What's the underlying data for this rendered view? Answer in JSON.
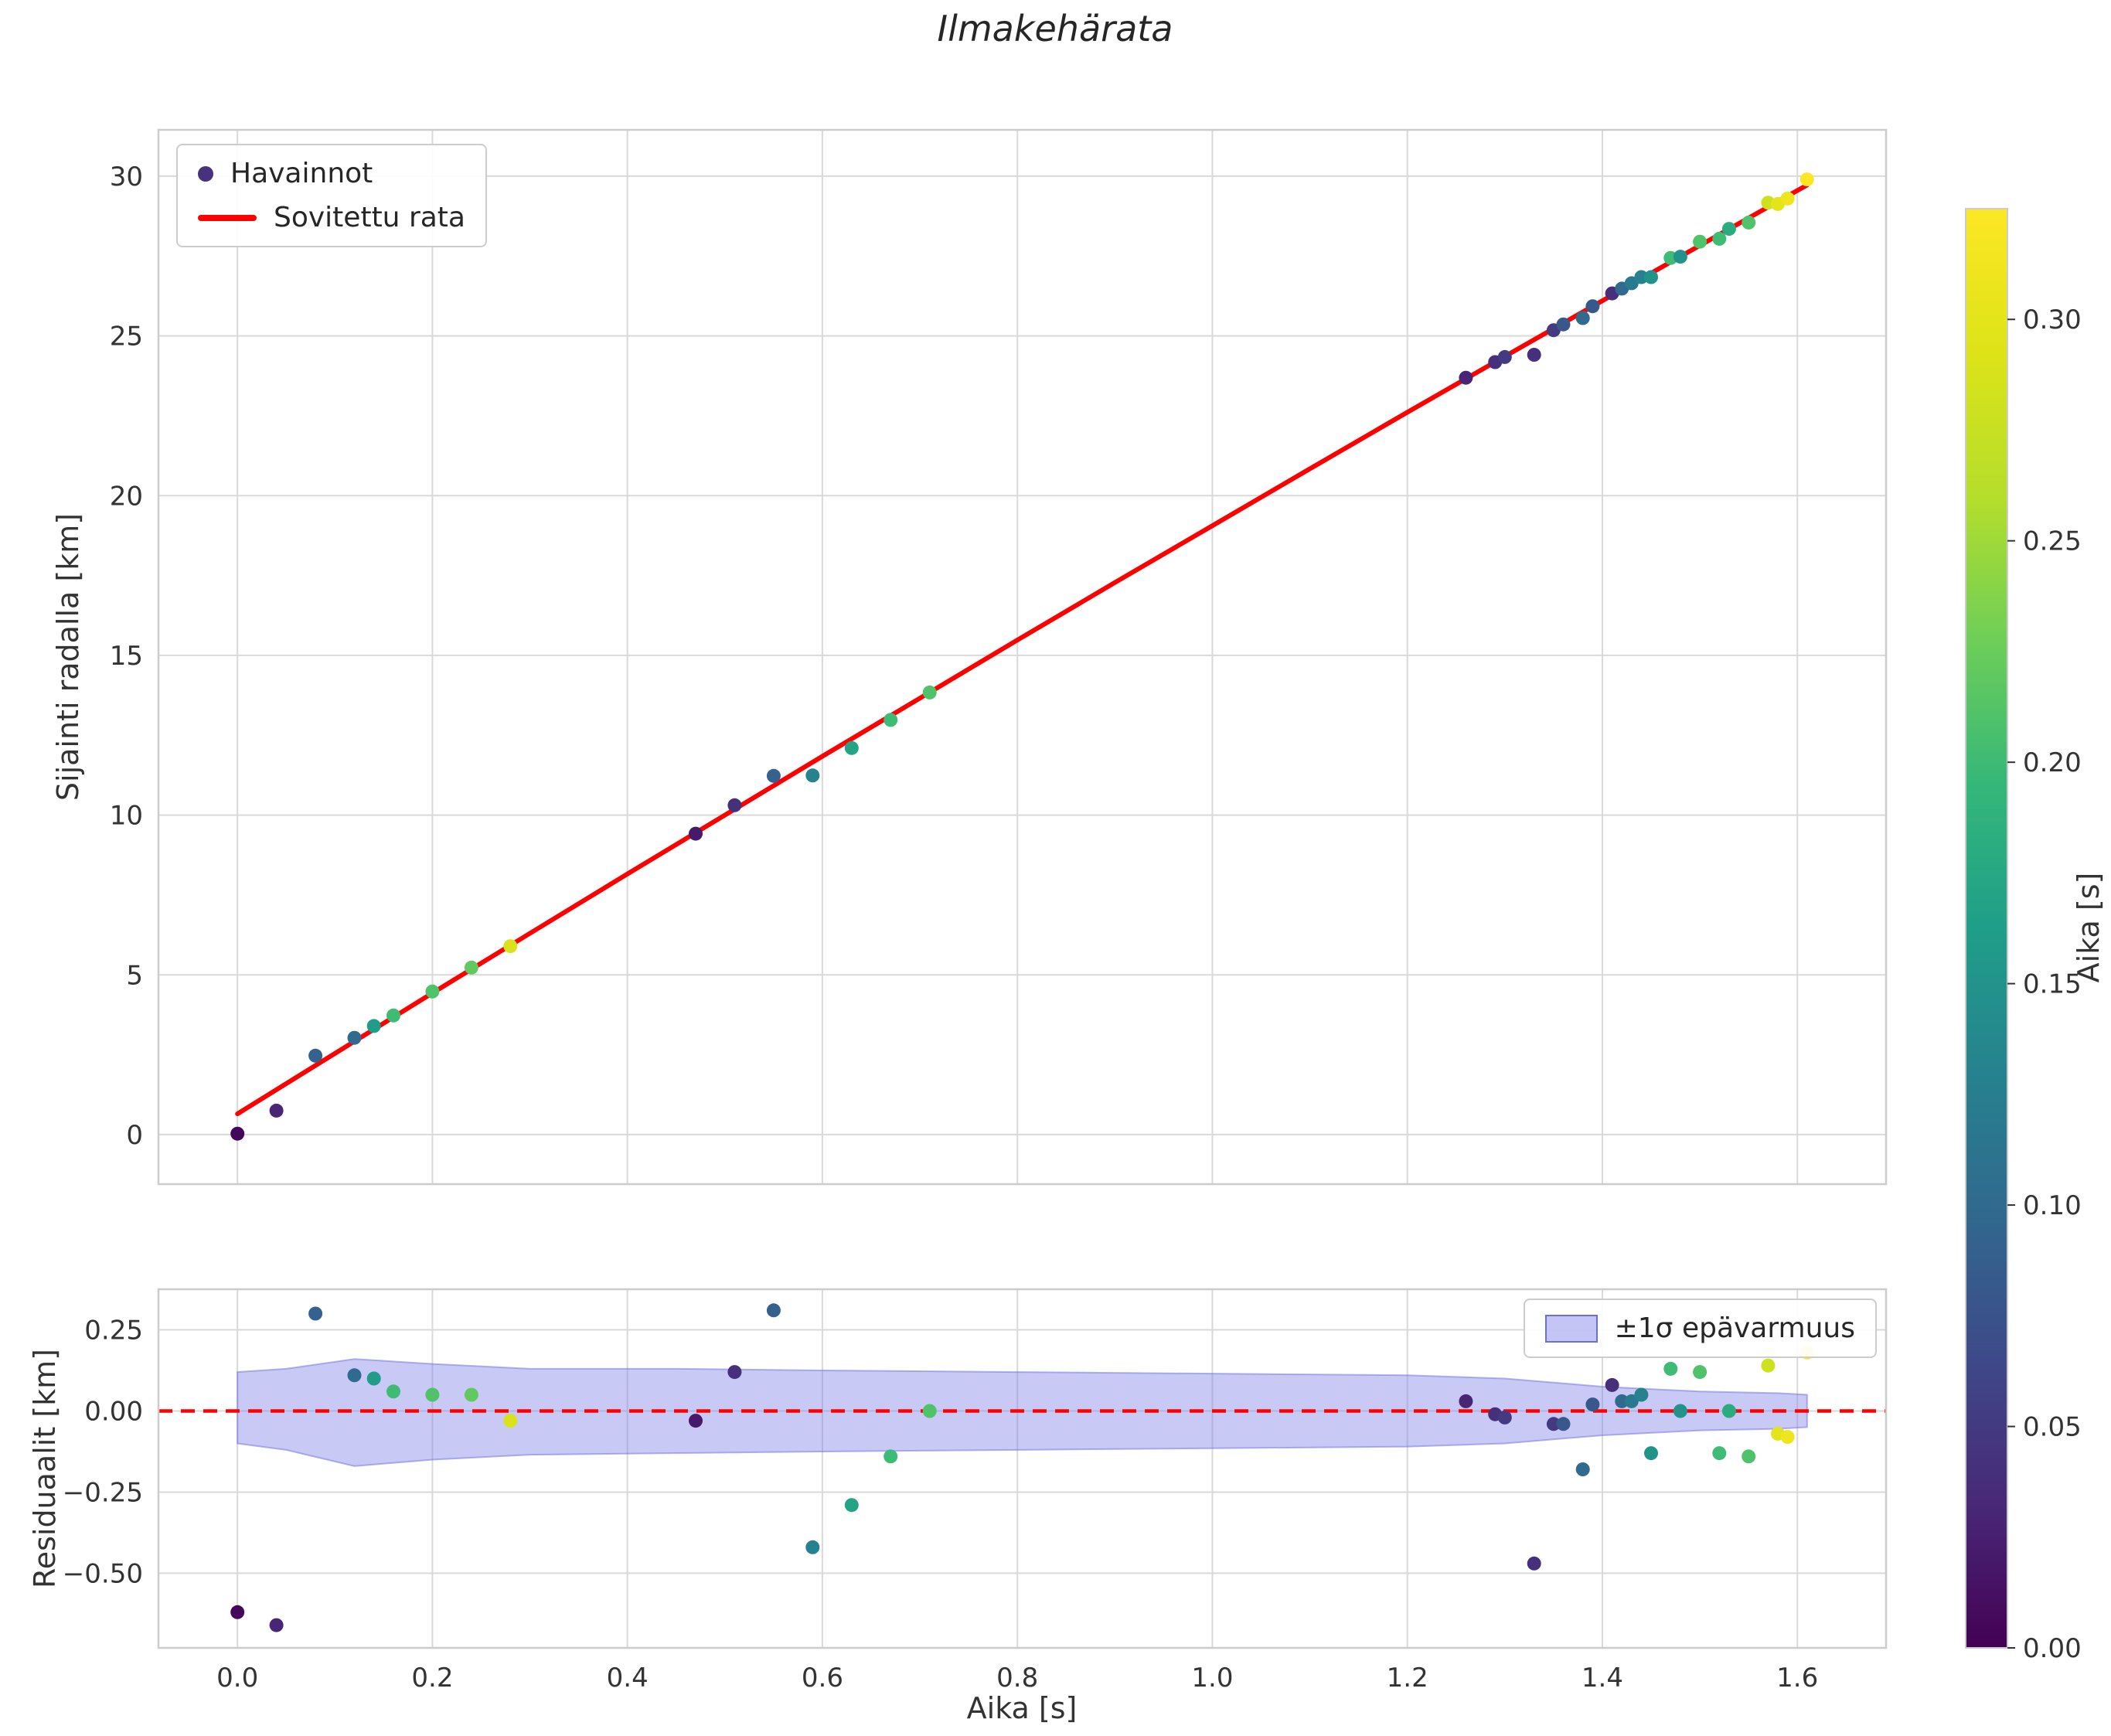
{
  "title": "Ilmakehärata",
  "colors": {
    "background": "#ffffff",
    "fit_line": "#ff0000",
    "grid": "#d9d9d9",
    "frame": "#cccccc",
    "band_fill": "#7f7fe8",
    "band_edge": "#6b6fdd",
    "tick_text": "#333333",
    "legend_marker": "#46327e"
  },
  "viridis_stops": [
    "#440154",
    "#482878",
    "#3e4989",
    "#31688e",
    "#26828e",
    "#1f9e89",
    "#35b779",
    "#6ece58",
    "#b5de2b",
    "#dde318",
    "#fde725"
  ],
  "observations": {
    "t": [
      0.0,
      0.04,
      0.08,
      0.12,
      0.14,
      0.16,
      0.2,
      0.24,
      0.28,
      0.47,
      0.51,
      0.55,
      0.59,
      0.63,
      0.67,
      0.71,
      1.26,
      1.29,
      1.3,
      1.33,
      1.35,
      1.36,
      1.38,
      1.39,
      1.41,
      1.42,
      1.43,
      1.44,
      1.45,
      1.47,
      1.48,
      1.5,
      1.52,
      1.53,
      1.55,
      1.57,
      1.58,
      1.59,
      1.61
    ],
    "pos": [
      0.03,
      0.75,
      2.47,
      3.03,
      3.4,
      3.73,
      4.48,
      5.23,
      5.9,
      9.42,
      10.31,
      11.23,
      11.24,
      12.1,
      12.98,
      13.84,
      23.69,
      24.18,
      24.34,
      24.41,
      25.18,
      25.36,
      25.56,
      25.93,
      26.33,
      26.48,
      26.65,
      26.84,
      26.84,
      27.44,
      27.48,
      27.95,
      28.04,
      28.35,
      28.55,
      29.17,
      29.13,
      29.3,
      29.9
    ],
    "resid": [
      -0.62,
      -0.66,
      0.3,
      0.11,
      0.1,
      0.06,
      0.05,
      0.05,
      -0.03,
      -0.03,
      0.12,
      0.31,
      -0.42,
      -0.29,
      -0.14,
      0.0,
      0.03,
      -0.01,
      -0.02,
      -0.47,
      -0.04,
      -0.04,
      -0.18,
      0.02,
      0.08,
      0.03,
      0.03,
      0.05,
      -0.13,
      0.13,
      0.0,
      0.12,
      -0.13,
      0.0,
      -0.14,
      0.14,
      -0.07,
      -0.08,
      0.18
    ],
    "c": [
      0.005,
      0.03,
      0.09,
      0.1,
      0.16,
      0.2,
      0.21,
      0.22,
      0.29,
      0.02,
      0.04,
      0.09,
      0.13,
      0.17,
      0.2,
      0.21,
      0.03,
      0.04,
      0.05,
      0.04,
      0.05,
      0.08,
      0.1,
      0.08,
      0.04,
      0.1,
      0.12,
      0.13,
      0.15,
      0.2,
      0.15,
      0.21,
      0.2,
      0.18,
      0.21,
      0.28,
      0.3,
      0.31,
      0.325
    ]
  },
  "chart_data": [
    {
      "id": "trajectory",
      "type": "scatter",
      "title": "Ilmakehärata",
      "xlabel": "",
      "ylabel": "Sijainti radalla [km]",
      "xlim": [
        -0.081,
        1.691
      ],
      "ylim": [
        -1.55,
        31.45
      ],
      "grid": true,
      "xticks": [
        0,
        0.2,
        0.4,
        0.6,
        0.8,
        1.0,
        1.2,
        1.4,
        1.6
      ],
      "yticks": [
        0,
        5,
        10,
        15,
        20,
        25,
        30
      ],
      "ytick_labels": [
        "0",
        "5",
        "10",
        "15",
        "20",
        "25",
        "30"
      ],
      "legend": {
        "position": "upper left",
        "entries": [
          {
            "label": "Havainnot",
            "type": "marker"
          },
          {
            "label": "Sovitettu rata",
            "type": "line"
          }
        ]
      },
      "fit_line": {
        "name": "Sovitettu rata",
        "color": "#ff0000",
        "x": [
          0.0,
          0.1,
          0.2,
          0.3,
          0.4,
          0.5,
          0.6,
          0.7,
          0.8,
          0.9,
          1.0,
          1.1,
          1.2,
          1.3,
          1.4,
          1.5,
          1.6,
          1.61
        ],
        "y": [
          0.65,
          2.54,
          4.43,
          6.3,
          8.16,
          10.0,
          11.84,
          13.66,
          15.48,
          17.28,
          19.06,
          20.84,
          22.61,
          24.36,
          26.1,
          27.83,
          29.55,
          29.72
        ]
      },
      "scatter": {
        "name": "Havainnot",
        "colormap": "viridis",
        "x": [
          0.0,
          0.04,
          0.08,
          0.12,
          0.14,
          0.16,
          0.2,
          0.24,
          0.28,
          0.47,
          0.51,
          0.55,
          0.59,
          0.63,
          0.67,
          0.71,
          1.26,
          1.29,
          1.3,
          1.33,
          1.35,
          1.36,
          1.38,
          1.39,
          1.41,
          1.42,
          1.43,
          1.44,
          1.45,
          1.47,
          1.48,
          1.5,
          1.52,
          1.53,
          1.55,
          1.57,
          1.58,
          1.59,
          1.61
        ],
        "y": [
          0.03,
          0.75,
          2.47,
          3.03,
          3.4,
          3.73,
          4.48,
          5.23,
          5.9,
          9.42,
          10.31,
          11.23,
          11.24,
          12.1,
          12.98,
          13.84,
          23.69,
          24.18,
          24.34,
          24.41,
          25.18,
          25.36,
          25.56,
          25.93,
          26.33,
          26.48,
          26.65,
          26.84,
          26.84,
          27.44,
          27.48,
          27.95,
          28.04,
          28.35,
          28.55,
          29.17,
          29.13,
          29.3,
          29.9
        ],
        "color_values": [
          0.005,
          0.03,
          0.09,
          0.1,
          0.16,
          0.2,
          0.21,
          0.22,
          0.29,
          0.02,
          0.04,
          0.09,
          0.13,
          0.17,
          0.2,
          0.21,
          0.03,
          0.04,
          0.05,
          0.04,
          0.05,
          0.08,
          0.1,
          0.08,
          0.04,
          0.1,
          0.12,
          0.13,
          0.15,
          0.2,
          0.15,
          0.21,
          0.2,
          0.18,
          0.21,
          0.28,
          0.3,
          0.31,
          0.325
        ]
      }
    },
    {
      "id": "residuals",
      "type": "scatter",
      "xlabel": "Aika [s]",
      "ylabel": "Residuaalit [km]",
      "xlim": [
        -0.081,
        1.691
      ],
      "ylim": [
        -0.73,
        0.375
      ],
      "grid": true,
      "xticks": [
        0,
        0.2,
        0.4,
        0.6,
        0.8,
        1.0,
        1.2,
        1.4,
        1.6
      ],
      "xtick_labels": [
        "0.0",
        "0.2",
        "0.4",
        "0.6",
        "0.8",
        "1.0",
        "1.2",
        "1.4",
        "1.6"
      ],
      "yticks": [
        0.25,
        0.0,
        -0.25,
        -0.5
      ],
      "ytick_labels": [
        "0.25",
        "0.00",
        "−0.25",
        "−0.50"
      ],
      "zero_line": {
        "y": 0,
        "color": "#ff0000",
        "style": "dashed"
      },
      "band": {
        "label": "±1σ epävarmuus",
        "x": [
          0.0,
          0.05,
          0.12,
          0.2,
          0.3,
          0.45,
          0.6,
          0.8,
          1.0,
          1.2,
          1.3,
          1.4,
          1.5,
          1.58,
          1.61
        ],
        "upper": [
          0.12,
          0.13,
          0.16,
          0.145,
          0.13,
          0.13,
          0.125,
          0.12,
          0.115,
          0.11,
          0.1,
          0.075,
          0.06,
          0.055,
          0.05
        ],
        "lower": [
          -0.1,
          -0.12,
          -0.17,
          -0.15,
          -0.135,
          -0.13,
          -0.125,
          -0.12,
          -0.115,
          -0.11,
          -0.1,
          -0.075,
          -0.06,
          -0.055,
          -0.05
        ]
      },
      "scatter": {
        "colormap": "viridis",
        "x": [
          0.0,
          0.04,
          0.08,
          0.12,
          0.14,
          0.16,
          0.2,
          0.24,
          0.28,
          0.47,
          0.51,
          0.55,
          0.59,
          0.63,
          0.67,
          0.71,
          1.26,
          1.29,
          1.3,
          1.33,
          1.35,
          1.36,
          1.38,
          1.39,
          1.41,
          1.42,
          1.43,
          1.44,
          1.45,
          1.47,
          1.48,
          1.5,
          1.52,
          1.53,
          1.55,
          1.57,
          1.58,
          1.59,
          1.61
        ],
        "y": [
          -0.62,
          -0.66,
          0.3,
          0.11,
          0.1,
          0.06,
          0.05,
          0.05,
          -0.03,
          -0.03,
          0.12,
          0.31,
          -0.42,
          -0.29,
          -0.14,
          0.0,
          0.03,
          -0.01,
          -0.02,
          -0.47,
          -0.04,
          -0.04,
          -0.18,
          0.02,
          0.08,
          0.03,
          0.03,
          0.05,
          -0.13,
          0.13,
          0.0,
          0.12,
          -0.13,
          0.0,
          -0.14,
          0.14,
          -0.07,
          -0.08,
          0.18
        ],
        "color_values": [
          0.005,
          0.03,
          0.09,
          0.1,
          0.16,
          0.2,
          0.21,
          0.22,
          0.29,
          0.02,
          0.04,
          0.09,
          0.13,
          0.17,
          0.2,
          0.21,
          0.03,
          0.04,
          0.05,
          0.04,
          0.05,
          0.08,
          0.1,
          0.08,
          0.04,
          0.1,
          0.12,
          0.13,
          0.15,
          0.2,
          0.15,
          0.21,
          0.2,
          0.18,
          0.21,
          0.28,
          0.3,
          0.31,
          0.325
        ]
      },
      "legend": {
        "position": "upper right",
        "entries": [
          {
            "label": "±1σ epävarmuus",
            "type": "patch"
          }
        ]
      }
    }
  ],
  "colorbar": {
    "label": "Aika [s]",
    "colormap": "viridis",
    "vmin": 0,
    "vmax": 0.325,
    "ticks": [
      0,
      0.05,
      0.1,
      0.15,
      0.2,
      0.25,
      0.3
    ],
    "tick_labels": [
      "0.00",
      "0.05",
      "0.10",
      "0.15",
      "0.20",
      "0.25",
      "0.30"
    ]
  }
}
